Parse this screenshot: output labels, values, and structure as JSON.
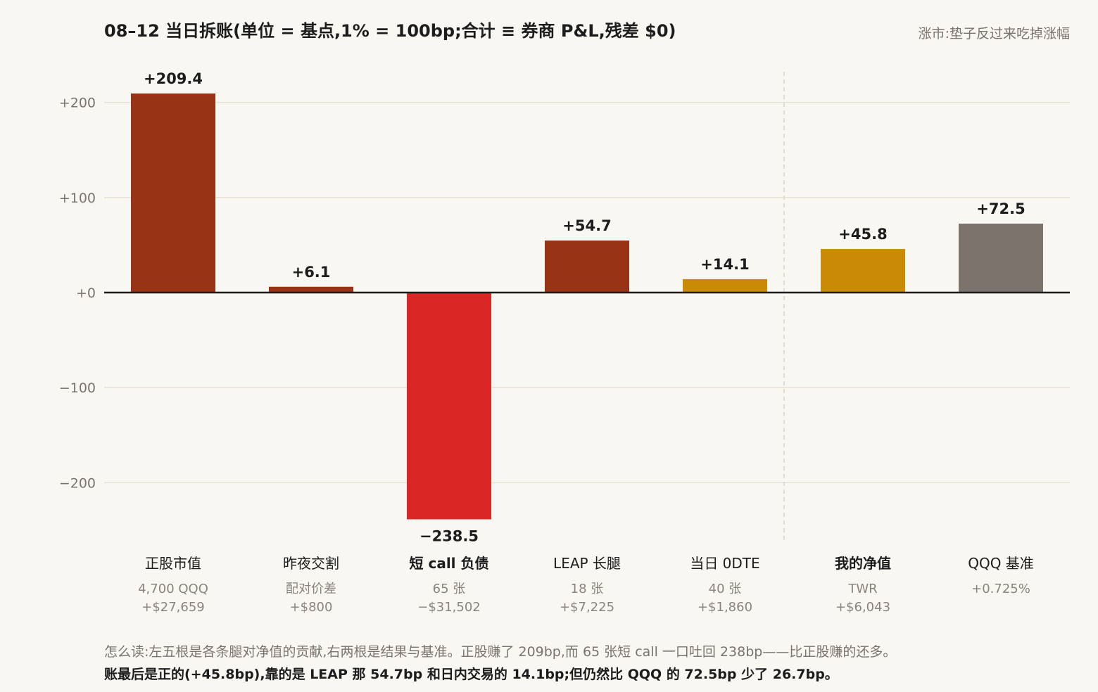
{
  "title": "08–12 当日拆账(单位 = 基点,1% = 100bp;合计 ≡ 券商 P&L,残差 $0)",
  "subtitle": "涨市:垫子反过来吃掉涨幅",
  "note_line1": "怎么读:左五根是各条腿对净值的贡献,右两根是结果与基准。正股赚了 209bp,而 65 张短 call 一口吐回 238bp——比正股赚的还多。",
  "note_line2": "账最后是正的(+45.8bp),靠的是 LEAP 那 54.7bp 和日内交易的 14.1bp;但仍然比 QQQ 的 72.5bp 少了 26.7bp。",
  "colors": {
    "dark_red": "#993316",
    "bright_red": "#db2626",
    "gold": "#c98a04",
    "gray": "#7c736c",
    "grid": "#e7e1d6",
    "separator": "#d9d3c8",
    "tick": "#7a746c",
    "bar_text": "#1c1c1c",
    "sub_text": "#8a847c"
  },
  "chart_data": {
    "type": "bar",
    "categories": [
      "正股市值",
      "昨夜交割",
      "短 call 负债",
      "LEAP 长腿",
      "当日 0DTE",
      "我的净值",
      "QQQ 基准"
    ],
    "values": [
      209.4,
      6.1,
      -238.5,
      54.7,
      14.1,
      45.8,
      72.5
    ],
    "value_labels": [
      "+209.4",
      "+6.1",
      "−238.5",
      "+54.7",
      "+14.1",
      "+45.8",
      "+72.5"
    ],
    "bar_colors": [
      "#993316",
      "#993316",
      "#db2626",
      "#993316",
      "#c98a04",
      "#c98a04",
      "#7c736c"
    ],
    "category_bold": [
      false,
      false,
      true,
      false,
      false,
      true,
      false
    ],
    "sublabels": [
      [
        "4,700 QQQ",
        "+$27,659"
      ],
      [
        "配对价差",
        "+$800"
      ],
      [
        "65 张",
        "−$31,502"
      ],
      [
        "18 张",
        "+$7,225"
      ],
      [
        "40 张",
        "+$1,860"
      ],
      [
        "TWR",
        "+$6,043"
      ],
      [
        "+0.725%"
      ]
    ],
    "yticks": [
      200,
      100,
      0,
      -100,
      -200
    ],
    "ytick_labels": [
      "+200",
      "+100",
      "+0",
      "−100",
      "−200"
    ],
    "ylim": [
      -258,
      230
    ],
    "grid": true,
    "xlabel": "",
    "ylabel": ""
  }
}
